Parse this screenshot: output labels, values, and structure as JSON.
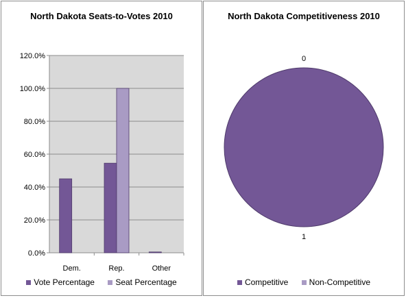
{
  "chart_data": [
    {
      "type": "bar",
      "title": "North Dakota Seats-to-Votes 2010",
      "categories": [
        "Dem.",
        "Rep.",
        "Other"
      ],
      "series": [
        {
          "name": "Vote Percentage",
          "values": [
            45.0,
            54.5,
            0.5
          ],
          "color": "#735796"
        },
        {
          "name": "Seat Percentage",
          "values": [
            0,
            100.0,
            0
          ],
          "color": "#a99bc4"
        }
      ],
      "ylim": [
        0,
        120
      ],
      "yticks": [
        "0.0%",
        "20.0%",
        "40.0%",
        "60.0%",
        "80.0%",
        "100.0%",
        "120.0%"
      ],
      "grid": true,
      "plot_background": "#d9d9d9",
      "legend": "bottom"
    },
    {
      "type": "pie",
      "title": "North Dakota Competitiveness 2010",
      "labels": [
        "Competitive",
        "Non-Competitive"
      ],
      "values": [
        1,
        0
      ],
      "data_labels": [
        "1",
        "0"
      ],
      "colors": [
        "#735796",
        "#a99bc4"
      ],
      "legend": "bottom"
    }
  ]
}
